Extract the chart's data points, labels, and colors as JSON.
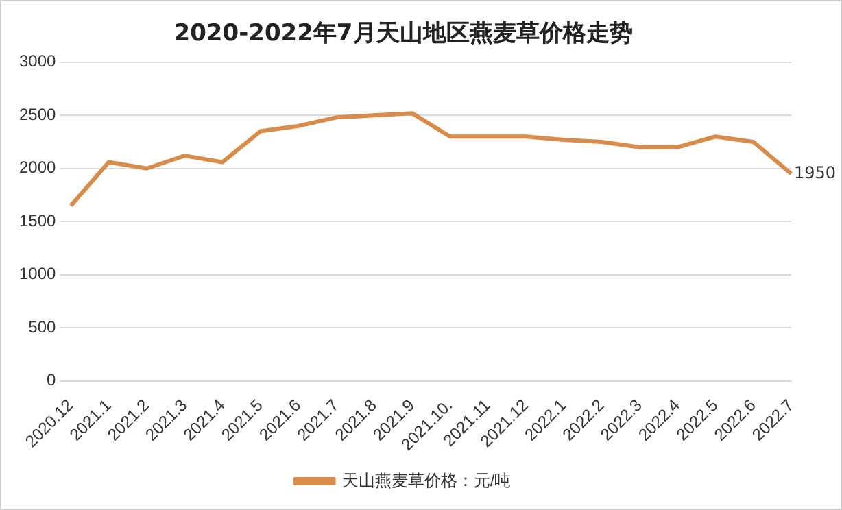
{
  "chart_data": {
    "type": "line",
    "title": "2020-2022年7月天山地区燕麦草价格走势",
    "categories": [
      "2020.12",
      "2021.1",
      "2021.2",
      "2021.3",
      "2021.4",
      "2021.5",
      "2021.6",
      "2021.7",
      "2021.8",
      "2021.9",
      "2021.10.",
      "2021.11",
      "2021.12",
      "2022.1",
      "2022.2",
      "2022.3",
      "2022.4",
      "2022.5",
      "2022.6",
      "2022.7"
    ],
    "series": [
      {
        "name": "天山燕麦草价格：元/吨",
        "color": "#d98c4a",
        "values": [
          1650,
          2060,
          2000,
          2120,
          2060,
          2350,
          2400,
          2480,
          2500,
          2520,
          2300,
          2300,
          2300,
          2270,
          2250,
          2200,
          2200,
          2300,
          2250,
          1950
        ],
        "value_labels": [
          null,
          null,
          null,
          null,
          null,
          null,
          null,
          null,
          null,
          null,
          null,
          null,
          null,
          null,
          null,
          null,
          null,
          null,
          null,
          "1950"
        ]
      }
    ],
    "ylim": [
      0,
      3000
    ],
    "yticks": [
      0,
      500,
      1000,
      1500,
      2000,
      2500,
      3000
    ],
    "grid": "y",
    "legend": "bottom",
    "marker": "none",
    "line_style": "solid"
  }
}
